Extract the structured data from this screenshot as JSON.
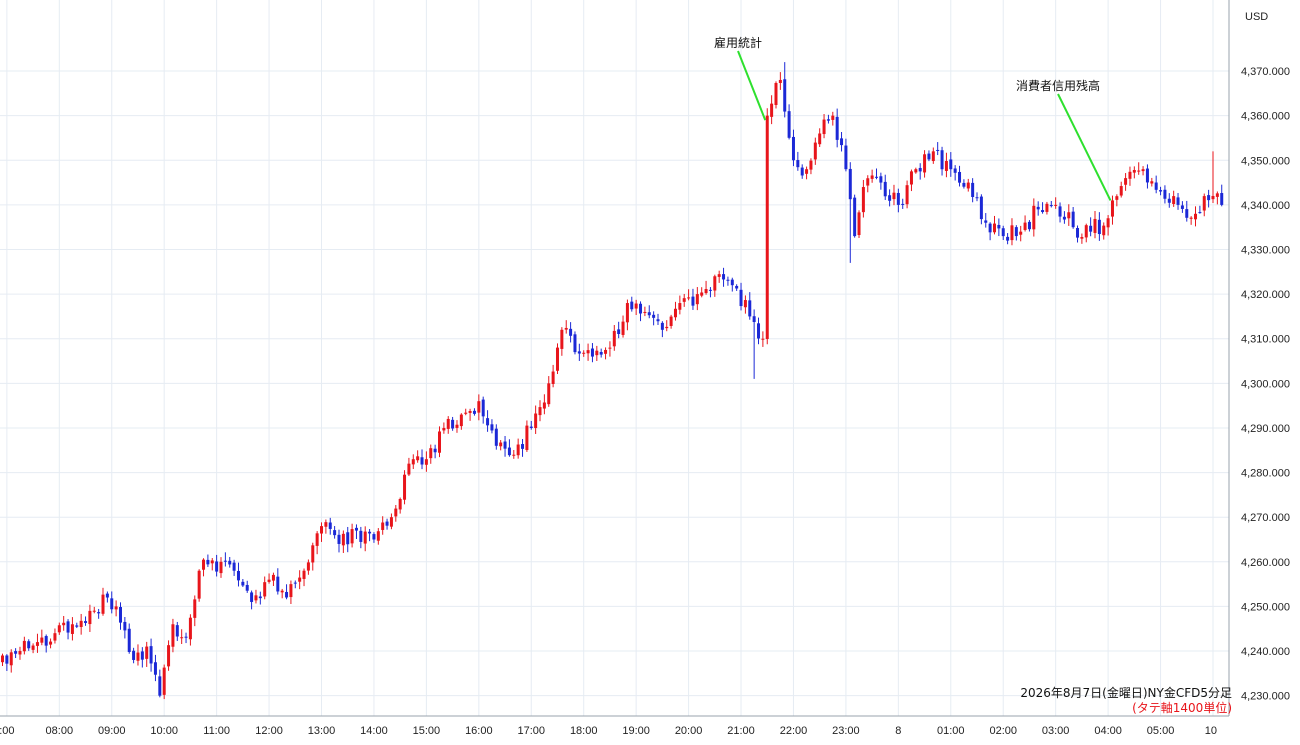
{
  "chart_data": {
    "type": "candlestick",
    "title": "",
    "currency_label": "USD",
    "caption": "2026年8月7日(金曜日)NY金CFD5分足",
    "caption_note": "(タテ軸1400単位)",
    "y_range": [
      4226,
      4382
    ],
    "y_ticks": [
      "4,230.000",
      "4,240.000",
      "4,250.000",
      "4,260.000",
      "4,270.000",
      "4,280.000",
      "4,290.000",
      "4,300.000",
      "4,310.000",
      "4,320.000",
      "4,330.000",
      "4,340.000",
      "4,350.000",
      "4,360.000",
      "4,370.000"
    ],
    "y_tick_values": [
      4230,
      4240,
      4250,
      4260,
      4270,
      4280,
      4290,
      4300,
      4310,
      4320,
      4330,
      4340,
      4350,
      4360,
      4370
    ],
    "x_ticks": [
      ":00",
      "08:00",
      "09:00",
      "10:00",
      "11:00",
      "12:00",
      "13:00",
      "14:00",
      "15:00",
      "16:00",
      "17:00",
      "18:00",
      "19:00",
      "20:00",
      "21:00",
      "22:00",
      "23:00",
      "8",
      "01:00",
      "02:00",
      "03:00",
      "04:00",
      "05:00",
      "10"
    ],
    "x_tick_index": [
      1,
      13,
      25,
      37,
      49,
      61,
      73,
      85,
      97,
      109,
      121,
      133,
      145,
      157,
      169,
      181,
      193,
      205,
      217,
      229,
      241,
      253,
      265,
      277
    ],
    "colors": {
      "up": "#e8151b",
      "down": "#1b28d6",
      "annotation_line": "#2ee02e",
      "note": "#e8151b"
    },
    "annotations": [
      {
        "label": "雇用統計",
        "candle_index": 175,
        "price": 4359
      },
      {
        "label": "消費者信用残高",
        "candle_index": 254,
        "price": 4341
      }
    ],
    "anchors": [
      [
        0,
        4239
      ],
      [
        4,
        4240
      ],
      [
        8,
        4242
      ],
      [
        12,
        4244
      ],
      [
        16,
        4246
      ],
      [
        20,
        4249
      ],
      [
        24,
        4252
      ],
      [
        26,
        4250
      ],
      [
        30,
        4238
      ],
      [
        33,
        4241
      ],
      [
        36,
        4230
      ],
      [
        39,
        4246
      ],
      [
        42,
        4243
      ],
      [
        45,
        4258
      ],
      [
        50,
        4260
      ],
      [
        53,
        4258
      ],
      [
        57,
        4251
      ],
      [
        61,
        4256
      ],
      [
        65,
        4252
      ],
      [
        69,
        4258
      ],
      [
        73,
        4268
      ],
      [
        77,
        4264
      ],
      [
        81,
        4267
      ],
      [
        85,
        4265
      ],
      [
        89,
        4270
      ],
      [
        93,
        4282
      ],
      [
        97,
        4283
      ],
      [
        101,
        4290
      ],
      [
        105,
        4293
      ],
      [
        109,
        4296
      ],
      [
        113,
        4286
      ],
      [
        117,
        4284
      ],
      [
        121,
        4290
      ],
      [
        125,
        4300
      ],
      [
        128,
        4312
      ],
      [
        131,
        4307
      ],
      [
        135,
        4306
      ],
      [
        139,
        4308
      ],
      [
        143,
        4318
      ],
      [
        147,
        4316
      ],
      [
        151,
        4312
      ],
      [
        155,
        4318
      ],
      [
        159,
        4320
      ],
      [
        163,
        4324
      ],
      [
        167,
        4322
      ],
      [
        171,
        4315
      ],
      [
        174,
        4310
      ],
      [
        175,
        4360
      ],
      [
        178,
        4368
      ],
      [
        181,
        4350
      ],
      [
        184,
        4348
      ],
      [
        187,
        4356
      ],
      [
        190,
        4360
      ],
      [
        193,
        4348
      ],
      [
        195,
        4333
      ],
      [
        197,
        4344
      ],
      [
        201,
        4345
      ],
      [
        205,
        4340
      ],
      [
        209,
        4348
      ],
      [
        213,
        4352
      ],
      [
        217,
        4348
      ],
      [
        221,
        4345
      ],
      [
        225,
        4336
      ],
      [
        229,
        4333
      ],
      [
        233,
        4334
      ],
      [
        237,
        4339
      ],
      [
        241,
        4340
      ],
      [
        245,
        4335
      ],
      [
        249,
        4334
      ],
      [
        253,
        4337
      ],
      [
        254,
        4341
      ],
      [
        257,
        4346
      ],
      [
        261,
        4348
      ],
      [
        265,
        4343
      ],
      [
        269,
        4340
      ],
      [
        273,
        4338
      ],
      [
        277,
        4342
      ],
      [
        279,
        4340
      ]
    ]
  }
}
